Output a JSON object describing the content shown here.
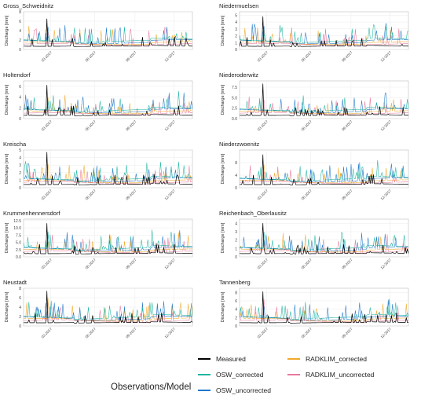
{
  "chart_data": {
    "type": "line",
    "ylabel": "Discharge [mm]",
    "x_ticks": [
      "03-2017",
      "06-2017",
      "09-2017",
      "12-2017"
    ],
    "series_names": [
      "Measured",
      "OSW_corrected",
      "OSW_uncorrected",
      "RADKLIM_corrected",
      "RADKLIM_uncorrected"
    ],
    "colors": {
      "Measured": "#000000",
      "OSW_corrected": "#1fb5a0",
      "OSW_uncorrected": "#1f78c8",
      "RADKLIM_corrected": "#f0a92a",
      "RADKLIM_uncorrected": "#e8789c"
    },
    "legend": {
      "title": "Observations/Model",
      "placement": "bottom",
      "items": [
        "Measured",
        "OSW_corrected",
        "OSW_uncorrected",
        "RADKLIM_corrected",
        "RADKLIM_uncorrected"
      ]
    },
    "panels": [
      {
        "title": "Gross_Schweidnitz",
        "yticks": [
          "0",
          "2",
          "4",
          "6",
          "8"
        ],
        "ymax": 8,
        "peak": 6.5
      },
      {
        "title": "Niedermuelsen",
        "yticks": [
          "0",
          "1",
          "2",
          "3",
          "4",
          "5"
        ],
        "ymax": 5.5,
        "peak": 4.8
      },
      {
        "title": "Holtendorf",
        "yticks": [
          "0",
          "2",
          "4",
          "6"
        ],
        "ymax": 7,
        "peak": 6.2
      },
      {
        "title": "Niederoderwitz",
        "yticks": [
          "0.0",
          "2.5",
          "5.0",
          "7.5"
        ],
        "ymax": 9,
        "peak": 8.3
      },
      {
        "title": "Kreischa",
        "yticks": [
          "0",
          "1",
          "2",
          "3",
          "4",
          "5"
        ],
        "ymax": 5,
        "peak": 4.7
      },
      {
        "title": "Niederzwoenitz",
        "yticks": [
          "0",
          "4",
          "8"
        ],
        "ymax": 12,
        "peak": 10.5
      },
      {
        "title": "Krummenhennersdorf",
        "yticks": [
          "0.0",
          "2.5",
          "5.0",
          "7.5",
          "10.0",
          "12.5"
        ],
        "ymax": 13,
        "peak": 11.5
      },
      {
        "title": "Reichenbach_Oberlausitz",
        "yticks": [
          "0",
          "1",
          "2",
          "3",
          "4"
        ],
        "ymax": 4.5,
        "peak": 4.0
      },
      {
        "title": "Neustadt",
        "yticks": [
          "0",
          "2",
          "4",
          "6",
          "8"
        ],
        "ymax": 8,
        "peak": 7.4
      },
      {
        "title": "Tannenberg",
        "yticks": [
          "0",
          "2",
          "4",
          "6",
          "8"
        ],
        "ymax": 9,
        "peak": 8.2
      }
    ]
  }
}
